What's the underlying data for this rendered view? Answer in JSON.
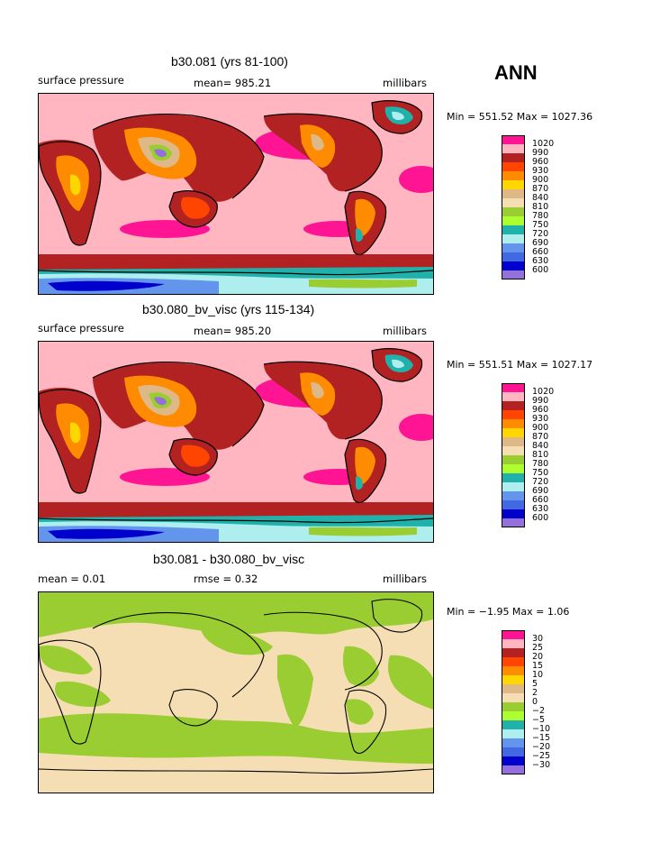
{
  "annual_label": "ANN",
  "panels": [
    {
      "title": "b30.081 (yrs 81-100)",
      "left_label": "surface pressure",
      "center_label": "mean= 985.21",
      "right_label": "millibars",
      "minmax": "Min = 551.52 Max = 1027.36",
      "colorbar": {
        "labels": [
          "1020",
          "990",
          "960",
          "930",
          "900",
          "870",
          "840",
          "810",
          "780",
          "750",
          "720",
          "690",
          "660",
          "630",
          "600"
        ],
        "colors": [
          "#ff1493",
          "#ffb6c1",
          "#b22222",
          "#ff4500",
          "#ff8c00",
          "#ffd700",
          "#deb887",
          "#f5deb3",
          "#9acd32",
          "#adff2f",
          "#20b2aa",
          "#afeeee",
          "#6495ed",
          "#4169e1",
          "#0000cd",
          "#9370db"
        ]
      }
    },
    {
      "title": "b30.080_bv_visc (yrs 115-134)",
      "left_label": "surface pressure",
      "center_label": "mean= 985.20",
      "right_label": "millibars",
      "minmax": "Min = 551.51 Max = 1027.17",
      "colorbar": {
        "labels": [
          "1020",
          "990",
          "960",
          "930",
          "900",
          "870",
          "840",
          "810",
          "780",
          "750",
          "720",
          "690",
          "660",
          "630",
          "600"
        ],
        "colors": [
          "#ff1493",
          "#ffb6c1",
          "#b22222",
          "#ff4500",
          "#ff8c00",
          "#ffd700",
          "#deb887",
          "#f5deb3",
          "#9acd32",
          "#adff2f",
          "#20b2aa",
          "#afeeee",
          "#6495ed",
          "#4169e1",
          "#0000cd",
          "#9370db"
        ]
      }
    },
    {
      "title": "b30.081 - b30.080_bv_visc",
      "left_label": "mean =    0.01",
      "center_label": "rmse =    0.32",
      "right_label": "millibars",
      "minmax": "Min =  −1.95 Max =    1.06",
      "colorbar": {
        "labels": [
          "30",
          "25",
          "20",
          "15",
          "10",
          "5",
          "2",
          "0",
          "−2",
          "−5",
          "−10",
          "−15",
          "−20",
          "−25",
          "−30"
        ],
        "colors": [
          "#ff1493",
          "#ffb6c1",
          "#b22222",
          "#ff4500",
          "#ff8c00",
          "#ffd700",
          "#deb887",
          "#f5deb3",
          "#9acd32",
          "#adff2f",
          "#20b2aa",
          "#afeeee",
          "#6495ed",
          "#4169e1",
          "#0000cd",
          "#9370db"
        ]
      }
    }
  ],
  "chart_data": [
    {
      "type": "heatmap",
      "title": "b30.081 (yrs 81-100)",
      "variable": "surface pressure",
      "units": "millibars",
      "mean": 985.21,
      "min": 551.52,
      "max": 1027.36,
      "contour_levels": [
        600,
        630,
        660,
        690,
        720,
        750,
        780,
        810,
        840,
        870,
        900,
        930,
        960,
        990,
        1020
      ]
    },
    {
      "type": "heatmap",
      "title": "b30.080_bv_visc (yrs 115-134)",
      "variable": "surface pressure",
      "units": "millibars",
      "mean": 985.2,
      "min": 551.51,
      "max": 1027.17,
      "contour_levels": [
        600,
        630,
        660,
        690,
        720,
        750,
        780,
        810,
        840,
        870,
        900,
        930,
        960,
        990,
        1020
      ]
    },
    {
      "type": "heatmap",
      "title": "b30.081 - b30.080_bv_visc",
      "units": "millibars",
      "mean": 0.01,
      "rmse": 0.32,
      "min": -1.95,
      "max": 1.06,
      "contour_levels": [
        -30,
        -25,
        -20,
        -15,
        -10,
        -5,
        -2,
        0,
        2,
        5,
        10,
        15,
        20,
        25,
        30
      ]
    }
  ]
}
